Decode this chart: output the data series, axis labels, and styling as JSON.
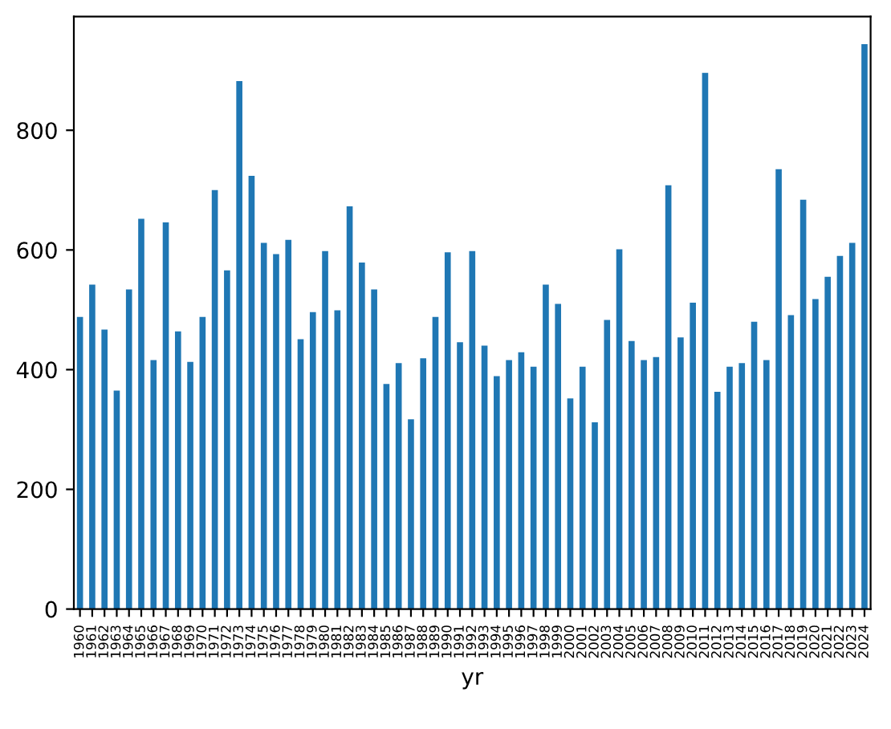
{
  "chart_data": {
    "type": "bar",
    "xlabel": "yr",
    "categories": [
      "1960",
      "1961",
      "1962",
      "1963",
      "1964",
      "1965",
      "1966",
      "1967",
      "1968",
      "1969",
      "1970",
      "1971",
      "1972",
      "1973",
      "1974",
      "1975",
      "1976",
      "1977",
      "1978",
      "1979",
      "1980",
      "1981",
      "1982",
      "1983",
      "1984",
      "1985",
      "1986",
      "1987",
      "1988",
      "1989",
      "1990",
      "1991",
      "1992",
      "1993",
      "1994",
      "1995",
      "1996",
      "1997",
      "1998",
      "1999",
      "2000",
      "2001",
      "2002",
      "2003",
      "2004",
      "2005",
      "2006",
      "2007",
      "2008",
      "2009",
      "2010",
      "2011",
      "2012",
      "2013",
      "2014",
      "2015",
      "2016",
      "2017",
      "2018",
      "2019",
      "2020",
      "2021",
      "2022",
      "2023",
      "2024"
    ],
    "values": [
      488,
      542,
      467,
      365,
      534,
      652,
      416,
      646,
      464,
      413,
      488,
      700,
      566,
      882,
      724,
      612,
      593,
      617,
      451,
      496,
      598,
      499,
      673,
      579,
      534,
      376,
      411,
      317,
      419,
      488,
      596,
      446,
      598,
      440,
      389,
      416,
      429,
      405,
      542,
      510,
      352,
      405,
      312,
      483,
      601,
      448,
      416,
      421,
      708,
      454,
      512,
      896,
      363,
      405,
      411,
      480,
      416,
      735,
      491,
      684,
      518,
      555,
      590,
      612,
      944
    ],
    "color": "#1f77b4",
    "ylim": [
      0,
      990
    ],
    "yticks": [
      0,
      200,
      400,
      600,
      800
    ]
  }
}
